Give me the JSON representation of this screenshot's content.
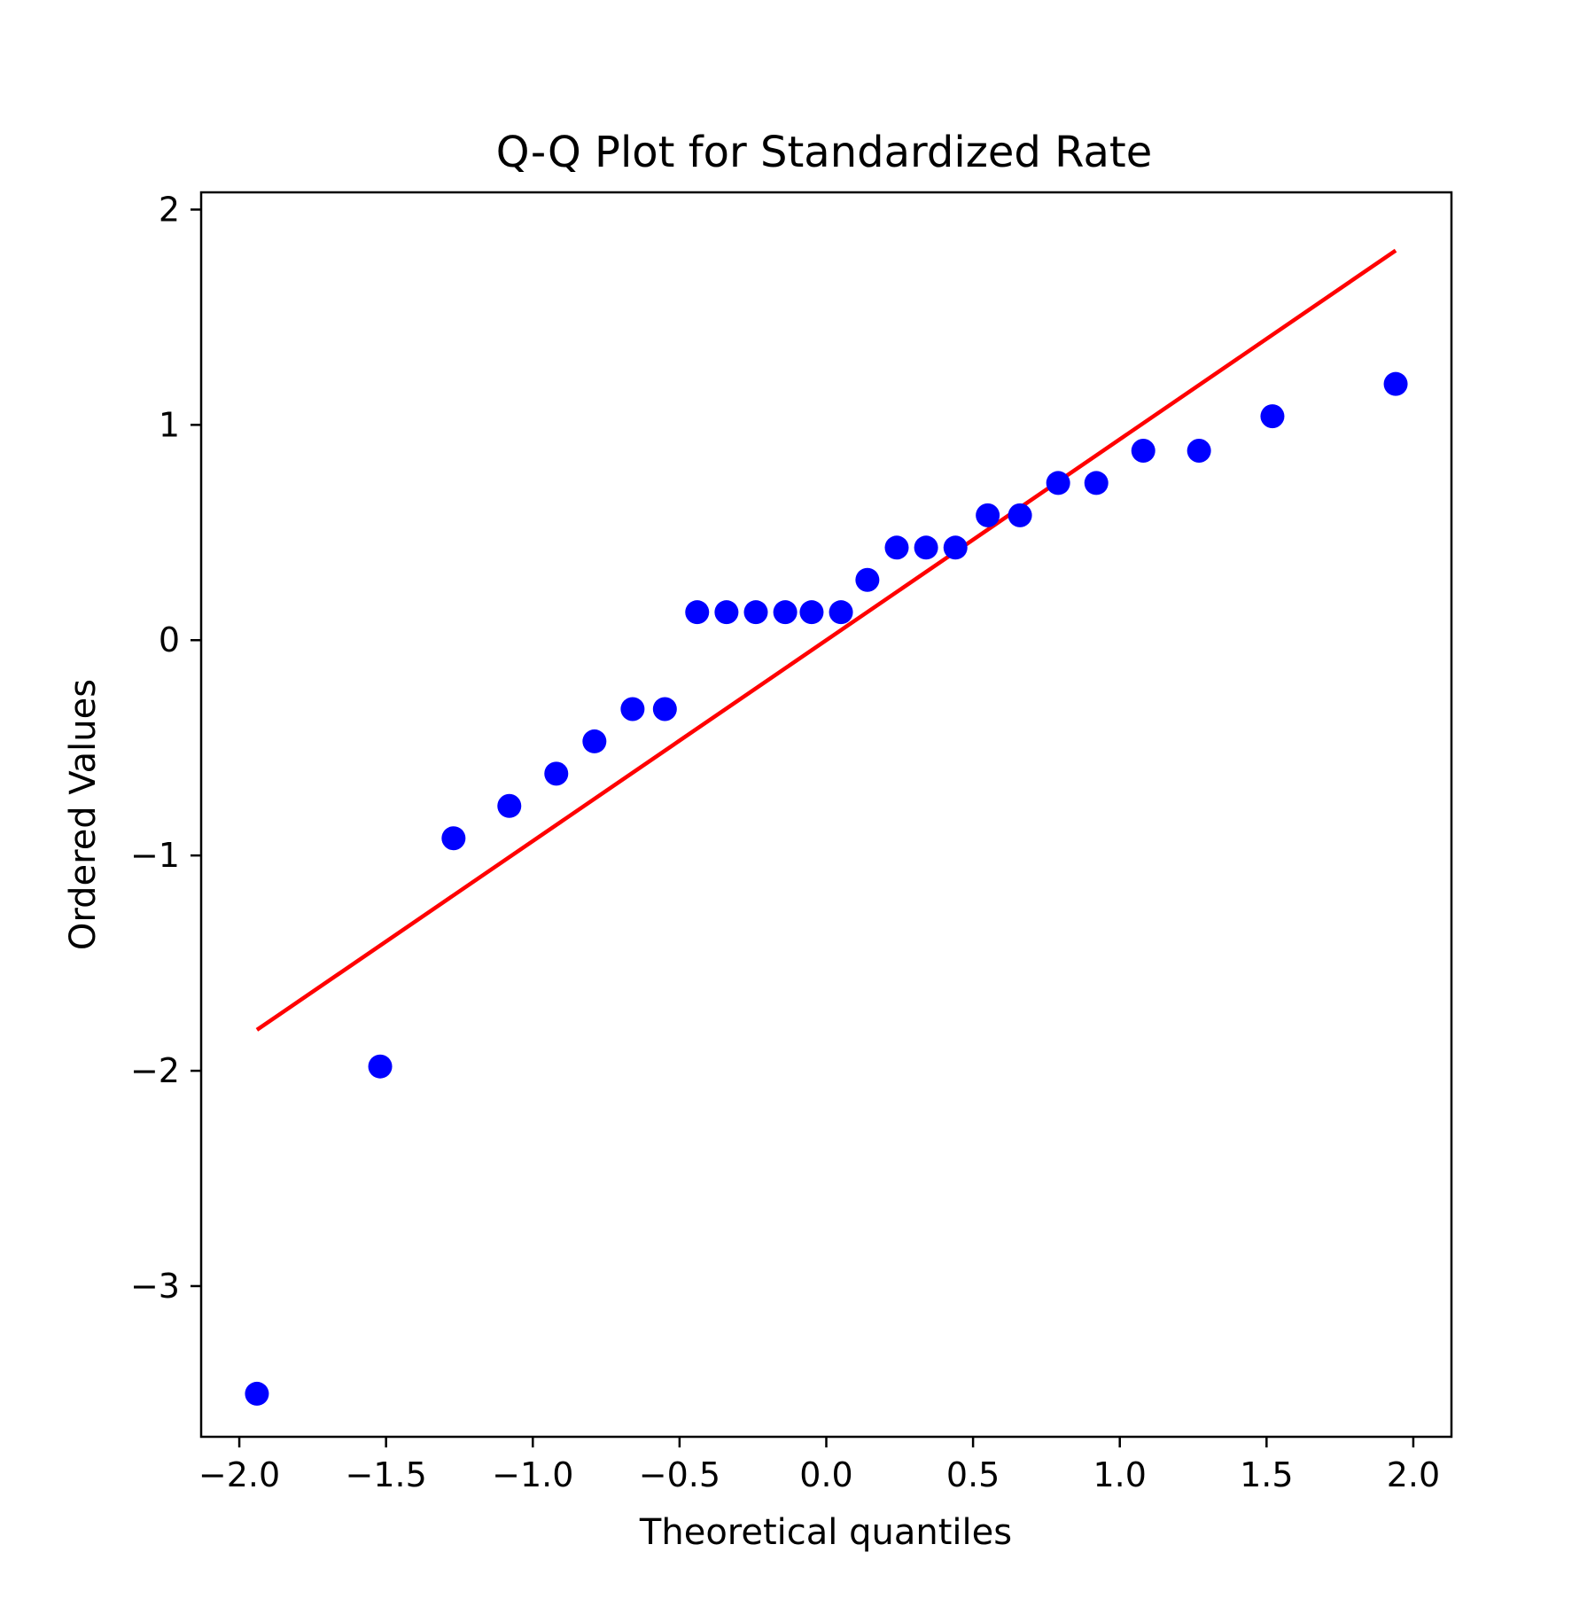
{
  "chart_data": {
    "type": "scatter",
    "title": "Q-Q Plot for Standardized Rate",
    "xlabel": "Theoretical quantiles",
    "ylabel": "Ordered Values",
    "xlim": [
      -2.13,
      2.13
    ],
    "ylim": [
      -3.7,
      2.08
    ],
    "grid": false,
    "x_ticks": [
      -2.0,
      -1.5,
      -1.0,
      -0.5,
      0.0,
      0.5,
      1.0,
      1.5,
      2.0
    ],
    "x_tick_labels": [
      "−2.0",
      "−1.5",
      "−1.0",
      "−0.5",
      "0.0",
      "0.5",
      "1.0",
      "1.5",
      "2.0"
    ],
    "y_ticks": [
      -3,
      -2,
      -1,
      0,
      1,
      2
    ],
    "y_tick_labels": [
      "−3",
      "−2",
      "−1",
      "0",
      "1",
      "2"
    ],
    "series": [
      {
        "kind": "points",
        "color": "#0000ff",
        "x": [
          -1.94,
          -1.52,
          -1.27,
          -1.08,
          -0.92,
          -0.79,
          -0.66,
          -0.55,
          -0.44,
          -0.34,
          -0.24,
          -0.14,
          -0.05,
          0.05,
          0.14,
          0.24,
          0.34,
          0.44,
          0.55,
          0.66,
          0.79,
          0.92,
          1.08,
          1.27,
          1.52,
          1.94
        ],
        "y": [
          -3.5,
          -1.98,
          -0.92,
          -0.77,
          -0.62,
          -0.47,
          -0.32,
          -0.32,
          0.13,
          0.13,
          0.13,
          0.13,
          0.13,
          0.13,
          0.28,
          0.43,
          0.43,
          0.43,
          0.58,
          0.58,
          0.73,
          0.73,
          0.88,
          0.88,
          1.04,
          1.19
        ]
      },
      {
        "kind": "line",
        "color": "#ff0000",
        "x": [
          -1.94,
          1.94
        ],
        "y": [
          -1.81,
          1.81
        ]
      }
    ]
  }
}
